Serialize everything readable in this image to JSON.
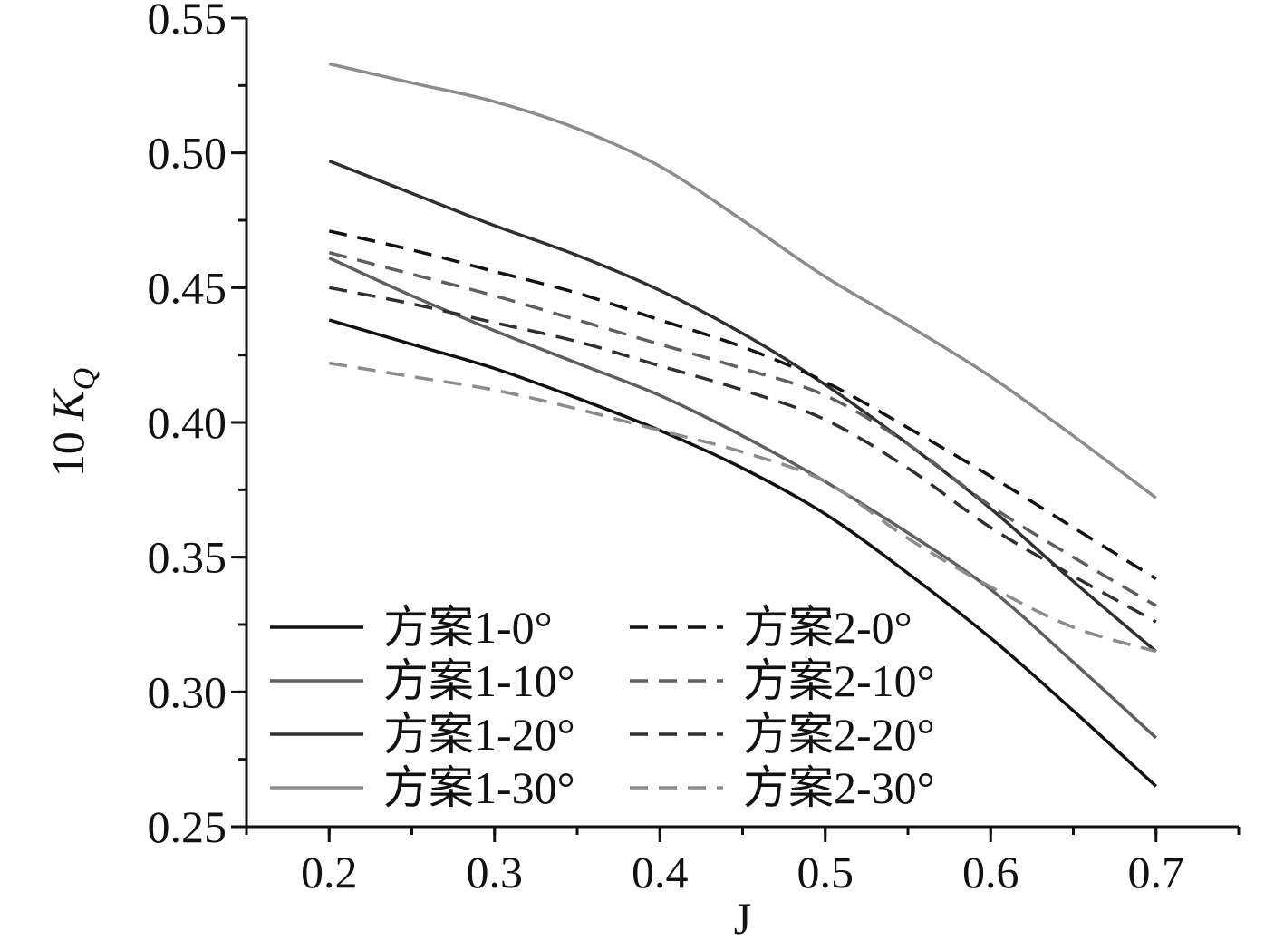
{
  "chart_data": {
    "type": "line",
    "xlabel": "J",
    "ylabel": {
      "prefix": "10 ",
      "symbol": "K",
      "subscript": "Q"
    },
    "xlim": [
      0.15,
      0.75
    ],
    "ylim": [
      0.25,
      0.55
    ],
    "x_ticks": [
      "0.2",
      "0.3",
      "0.4",
      "0.5",
      "0.6",
      "0.7"
    ],
    "y_ticks": [
      "0.25",
      "0.30",
      "0.35",
      "0.40",
      "0.45",
      "0.50",
      "0.55"
    ],
    "x_minor_step": 0.05,
    "y_minor_step": 0.025,
    "grid": false,
    "legend_position": "bottom-left",
    "legend_columns": 2,
    "x": [
      0.2,
      0.25,
      0.3,
      0.35,
      0.4,
      0.45,
      0.5,
      0.55,
      0.6,
      0.65,
      0.7
    ],
    "series": [
      {
        "name": "方案1-0°",
        "color": "#111111",
        "dash": "solid",
        "values": [
          0.438,
          0.429,
          0.42,
          0.409,
          0.397,
          0.383,
          0.366,
          0.344,
          0.32,
          0.293,
          0.265
        ]
      },
      {
        "name": "方案1-10°",
        "color": "#5f5f5f",
        "dash": "solid",
        "values": [
          0.461,
          0.447,
          0.434,
          0.422,
          0.41,
          0.395,
          0.378,
          0.359,
          0.338,
          0.311,
          0.283
        ]
      },
      {
        "name": "方案1-20°",
        "color": "#303030",
        "dash": "solid",
        "values": [
          0.497,
          0.485,
          0.473,
          0.462,
          0.449,
          0.433,
          0.414,
          0.392,
          0.368,
          0.341,
          0.315
        ]
      },
      {
        "name": "方案1-30°",
        "color": "#8c8c8c",
        "dash": "solid",
        "values": [
          0.533,
          0.526,
          0.519,
          0.509,
          0.495,
          0.475,
          0.454,
          0.436,
          0.417,
          0.395,
          0.372
        ]
      },
      {
        "name": "方案2-0°",
        "color": "#111111",
        "dash": "dashed",
        "values": [
          0.471,
          0.464,
          0.456,
          0.448,
          0.438,
          0.428,
          0.415,
          0.398,
          0.38,
          0.361,
          0.342
        ]
      },
      {
        "name": "方案2-10°",
        "color": "#5f5f5f",
        "dash": "dashed",
        "values": [
          0.463,
          0.455,
          0.447,
          0.438,
          0.429,
          0.42,
          0.41,
          0.392,
          0.369,
          0.35,
          0.332
        ]
      },
      {
        "name": "方案2-20°",
        "color": "#303030",
        "dash": "dashed",
        "values": [
          0.45,
          0.444,
          0.437,
          0.43,
          0.421,
          0.412,
          0.401,
          0.383,
          0.361,
          0.343,
          0.326
        ]
      },
      {
        "name": "方案2-30°",
        "color": "#8c8c8c",
        "dash": "dashed",
        "values": [
          0.422,
          0.417,
          0.412,
          0.405,
          0.397,
          0.389,
          0.378,
          0.357,
          0.339,
          0.324,
          0.315
        ]
      }
    ]
  }
}
